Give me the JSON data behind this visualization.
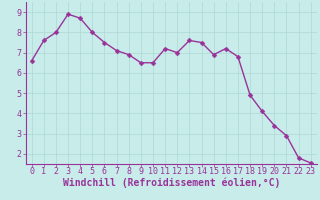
{
  "x": [
    0,
    1,
    2,
    3,
    4,
    5,
    6,
    7,
    8,
    9,
    10,
    11,
    12,
    13,
    14,
    15,
    16,
    17,
    18,
    19,
    20,
    21,
    22,
    23
  ],
  "y": [
    6.6,
    7.6,
    8.0,
    8.9,
    8.7,
    8.0,
    7.5,
    7.1,
    6.9,
    6.5,
    6.5,
    7.2,
    7.0,
    7.6,
    7.5,
    6.9,
    7.2,
    6.8,
    4.9,
    4.1,
    3.4,
    2.9,
    1.8,
    1.55
  ],
  "line_color": "#993399",
  "marker": "D",
  "markersize": 2.5,
  "linewidth": 1.0,
  "bg_color": "#c8ecea",
  "grid_color": "#aed8d5",
  "xlabel": "Windchill (Refroidissement éolien,°C)",
  "xlabel_color": "#993399",
  "tick_color": "#993399",
  "ylim": [
    1.5,
    9.5
  ],
  "xlim": [
    -0.5,
    23.5
  ],
  "yticks": [
    2,
    3,
    4,
    5,
    6,
    7,
    8,
    9
  ],
  "xticks": [
    0,
    1,
    2,
    3,
    4,
    5,
    6,
    7,
    8,
    9,
    10,
    11,
    12,
    13,
    14,
    15,
    16,
    17,
    18,
    19,
    20,
    21,
    22,
    23
  ],
  "tick_fontsize": 6,
  "xlabel_fontsize": 7
}
